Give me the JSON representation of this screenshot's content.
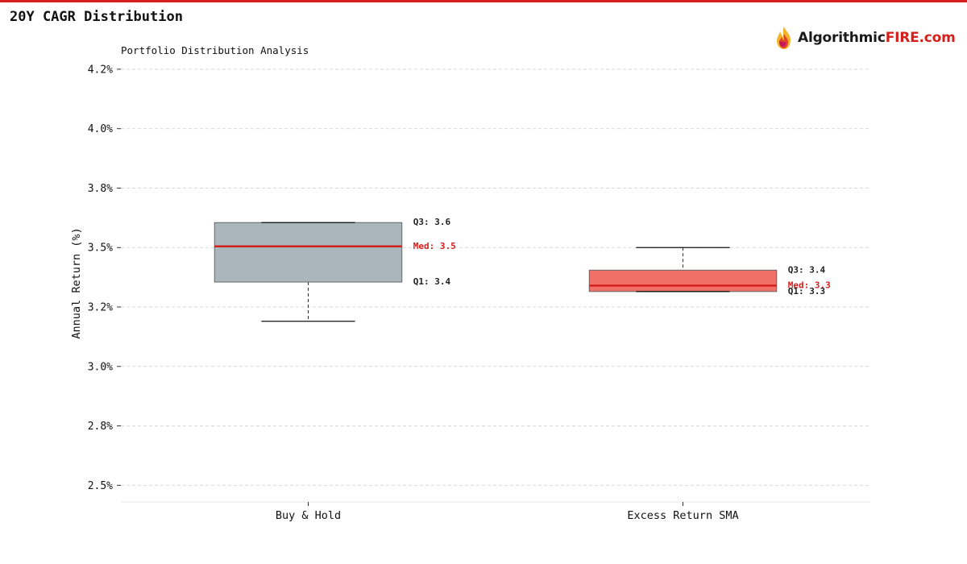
{
  "header": {
    "title": "20Y CAGR Distribution",
    "subtitle": "Portfolio Distribution Analysis",
    "accent_color": "#d4201c"
  },
  "logo": {
    "text_main": "Algorithmic",
    "text_accent": "FIRE.com",
    "icon": "flame-icon"
  },
  "chart_data": {
    "type": "box",
    "title": "20Y CAGR Distribution",
    "subtitle": "Portfolio Distribution Analysis",
    "ylabel": "Annual Return (%)",
    "xlabel": "",
    "ylim": [
      2.43,
      4.27
    ],
    "yticks": [
      2.5,
      2.75,
      3.0,
      3.25,
      3.5,
      3.75,
      4.0,
      4.25
    ],
    "ytick_labels": [
      "2.5%",
      "2.8%",
      "3.0%",
      "3.2%",
      "3.5%",
      "3.8%",
      "4.0%",
      "4.2%"
    ],
    "grid": true,
    "categories": [
      "Buy & Hold",
      "Excess Return SMA"
    ],
    "series": [
      {
        "name": "Buy & Hold",
        "color": "#a9b7bd",
        "whisker_low": 3.19,
        "q1": 3.355,
        "median": 3.505,
        "q3": 3.605,
        "whisker_high": 3.605,
        "labels": {
          "q3": "Q3: 3.6",
          "median": "Med: 3.5",
          "q1": "Q1: 3.4"
        }
      },
      {
        "name": "Excess Return SMA",
        "color": "#f07068",
        "whisker_low": 3.315,
        "q1": 3.315,
        "median": 3.34,
        "q3": 3.405,
        "whisker_high": 3.5,
        "labels": {
          "q3": "Q3: 3.4",
          "median": "Med: 3.3",
          "q1": "Q1: 3.3"
        }
      }
    ],
    "median_color": "#d4201c",
    "annotation_color": "#222222"
  }
}
